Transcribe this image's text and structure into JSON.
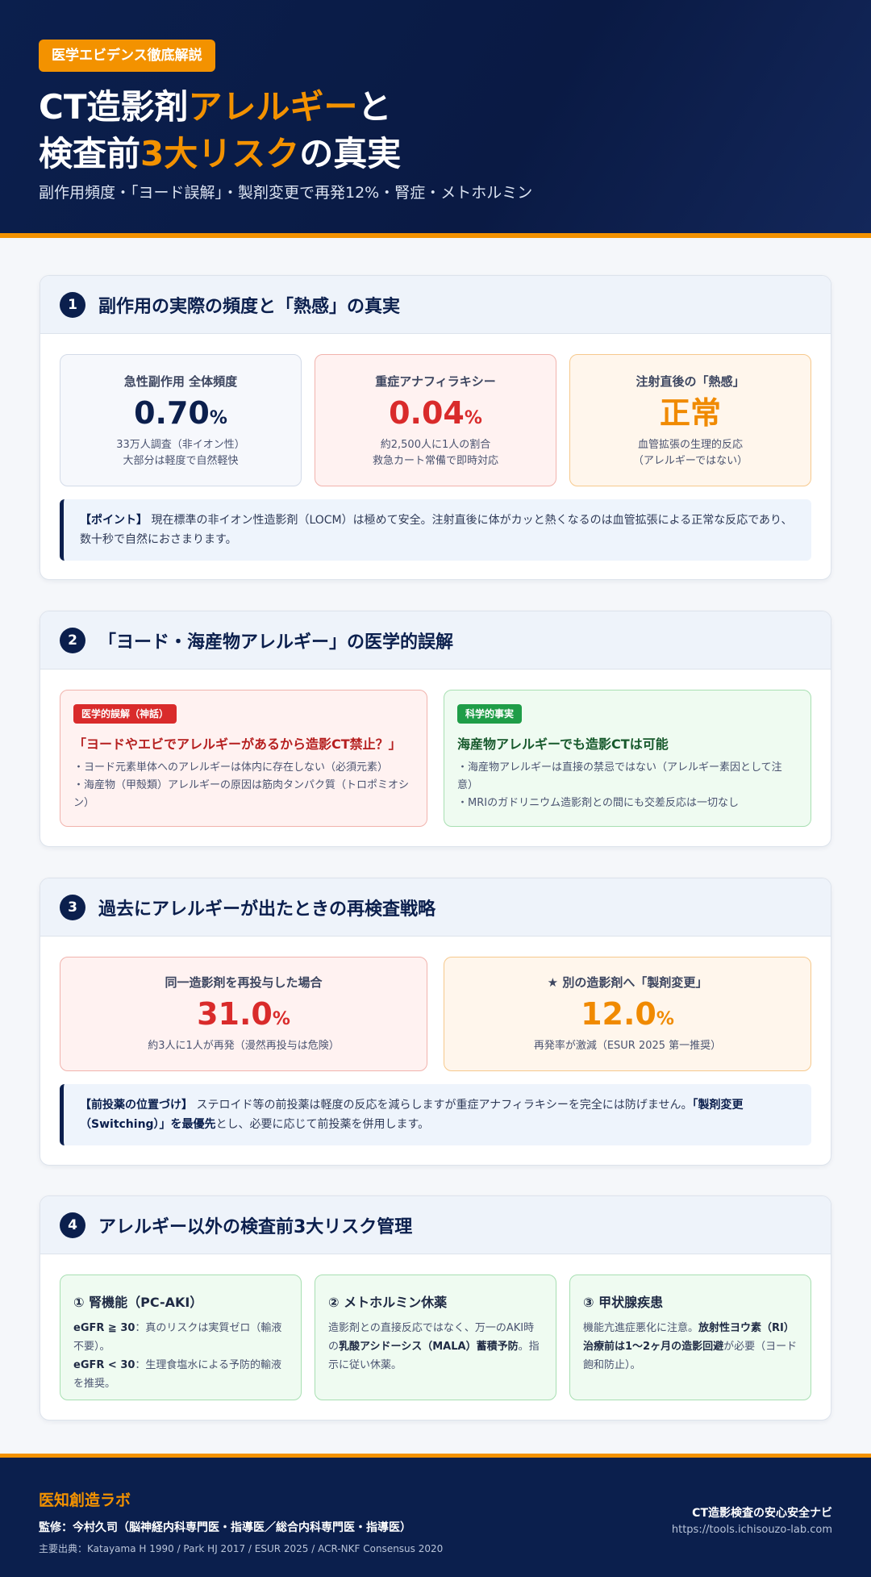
{
  "header": {
    "badge": "医学エビデンス徹底解説",
    "title_line1_a": "CT造影剤",
    "title_line1_b": "アレルギー",
    "title_line1_c": "と",
    "title_line2_a": "検査前",
    "title_line2_b": "3大リスク",
    "title_line2_c": "の真実",
    "subtitle": "副作用頻度・「ヨード誤解」・製剤変更で再発12%・腎症・メトホルミン"
  },
  "s1": {
    "num": "1",
    "title": "副作用の実際の頻度と「熱感」の真実",
    "cards": [
      {
        "label": "急性副作用 全体頻度",
        "value": "0.70",
        "unit": "%",
        "desc1": "33万人調査（非イオン性）",
        "desc2": "大部分は軽度で自然軽快"
      },
      {
        "label": "重症アナフィラキシー",
        "value": "0.04",
        "unit": "%",
        "desc1": "約2,500人に1人の割合",
        "desc2": "救急カート常備で即時対応"
      },
      {
        "label": "注射直後の「熱感」",
        "value": "正常",
        "unit": "",
        "desc1": "血管拡張の生理的反応",
        "desc2": "（アレルギーではない）"
      }
    ],
    "note_label": "【ポイント】",
    "note_text": " 現在標準の非イオン性造影剤（LOCM）は極めて安全。注射直後に体がカッと熱くなるのは血管拡張による正常な反応であり、数十秒で自然におさまります。"
  },
  "s2": {
    "num": "2",
    "title": "「ヨード・海産物アレルギー」の医学的誤解",
    "myth_tag": "医学的誤解（神話）",
    "myth_title": "「ヨードやエビでアレルギーがあるから造影CT禁止？」",
    "myth_line1": "・ヨード元素単体へのアレルギーは体内に存在しない（必須元素）",
    "myth_line2": "・海産物（甲殻類）アレルギーの原因は筋肉タンパク質（トロポミオシン）",
    "fact_tag": "科学的事実",
    "fact_title": "海産物アレルギーでも造影CTは可能",
    "fact_line1": "・海産物アレルギーは直接の禁忌ではない（アレルギー素因として注意）",
    "fact_line2": "・MRIのガドリニウム造影剤との間にも交差反応は一切なし"
  },
  "s3": {
    "num": "3",
    "title": "過去にアレルギーが出たときの再検査戦略",
    "cards": [
      {
        "label": "同一造影剤を再投与した場合",
        "value": "31.0",
        "unit": "%",
        "desc": "約3人に1人が再発（漫然再投与は危険）"
      },
      {
        "label": "★ 別の造影剤へ「製剤変更」",
        "value": "12.0",
        "unit": "%",
        "desc": "再発率が激減（ESUR 2025 第一推奨）"
      }
    ],
    "note_label": "【前投薬の位置づけ】",
    "note_text": " ステロイド等の前投薬は軽度の反応を減らしますが重症アナフィラキシーを完全には防げません。",
    "note_bold": "「製剤変更（Switching）」を最優先",
    "note_tail": "とし、必要に応じて前投薬を併用します。"
  },
  "s4": {
    "num": "4",
    "title": "アレルギー以外の検査前3大リスク管理",
    "risk1_title": "① 腎機能（PC-AKI）",
    "risk1_b1": "eGFR ≧ 30",
    "risk1_t1": "：真のリスクは実質ゼロ（輸液不要）。",
    "risk1_b2": "eGFR < 30",
    "risk1_t2": "：生理食塩水による予防的輸液を推奨。",
    "risk2_title": "② メトホルミン休薬",
    "risk2_t1": "造影剤との直接反応ではなく、万一のAKI時の",
    "risk2_b1": "乳酸アシドーシス（MALA）蓄積予防",
    "risk2_t2": "。指示に従い休薬。",
    "risk3_title": "③ 甲状腺疾患",
    "risk3_t1": "機能亢進症悪化に注意。",
    "risk3_b1": "放射性ヨウ素（RI）治療前は1〜2ヶ月の造影回避",
    "risk3_t2": "が必要（ヨード飽和防止）。"
  },
  "footer": {
    "brand": "医知創造ラボ",
    "supervisor": "監修：今村久司（脳神経内科専門医・指導医／総合内科専門医・指導医）",
    "sources": "主要出典：Katayama H 1990 / Park HJ 2017 / ESUR 2025 / ACR-NKF Consensus 2020",
    "navi": "CT造影検査の安心安全ナビ",
    "url": "https://tools.ichisouzo-lab.com"
  }
}
